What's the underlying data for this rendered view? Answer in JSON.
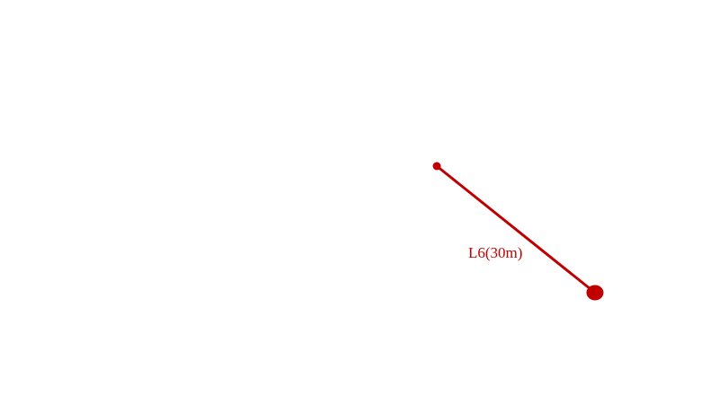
{
  "segment": {
    "label": "L6(30m)",
    "color": "#c00000"
  }
}
